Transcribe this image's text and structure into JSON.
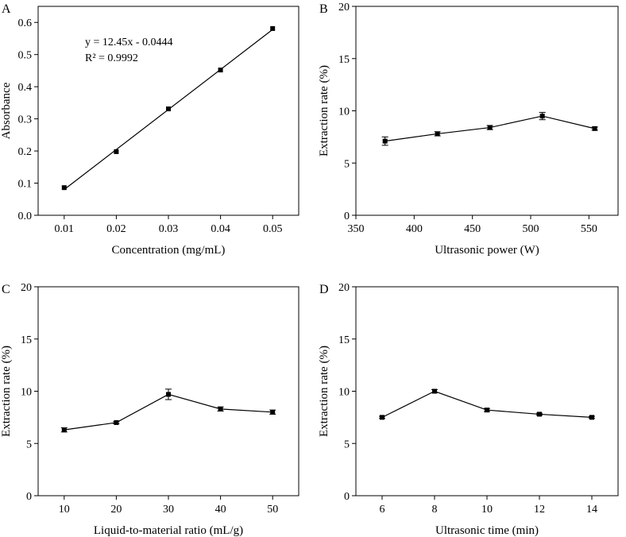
{
  "chart_data": [
    {
      "panel": "A",
      "type": "scatter",
      "xlabel": "Concentration (mg/mL)",
      "ylabel": "Absorbance",
      "xlim": [
        0.005,
        0.055
      ],
      "ylim": [
        0,
        0.65
      ],
      "xticks": [
        "0.01",
        "0.02",
        "0.03",
        "0.04",
        "0.05"
      ],
      "yticks": [
        "0.0",
        "0.1",
        "0.2",
        "0.3",
        "0.4",
        "0.5",
        "0.6"
      ],
      "x": [
        0.01,
        0.02,
        0.03,
        0.04,
        0.05
      ],
      "y": [
        0.086,
        0.198,
        0.331,
        0.452,
        0.581
      ],
      "error": [
        0,
        0,
        0,
        0,
        0
      ],
      "fit_line": {
        "slope": 12.45,
        "intercept": -0.0444
      },
      "annotations": [
        "y = 12.45x - 0.0444",
        "R² = 0.9992"
      ]
    },
    {
      "panel": "B",
      "type": "line",
      "xlabel": "Ultrasonic power (W)",
      "ylabel": "Extraction rate (%)",
      "xlim": [
        350,
        575
      ],
      "ylim": [
        0,
        20
      ],
      "xticks": [
        "350",
        "400",
        "450",
        "500",
        "550"
      ],
      "yticks": [
        "0",
        "5",
        "10",
        "15",
        "20"
      ],
      "x": [
        375,
        420,
        465,
        510,
        555
      ],
      "y": [
        7.1,
        7.8,
        8.4,
        9.5,
        8.3
      ],
      "error": [
        0.4,
        0.2,
        0.2,
        0.35,
        0.15
      ],
      "annotations": []
    },
    {
      "panel": "C",
      "type": "line",
      "xlabel": "Liquid-to-material ratio (mL/g)",
      "ylabel": "Extraction rate (%)",
      "xlim": [
        5,
        55
      ],
      "ylim": [
        0,
        20
      ],
      "xticks": [
        "10",
        "20",
        "30",
        "40",
        "50"
      ],
      "yticks": [
        "0",
        "5",
        "10",
        "15",
        "20"
      ],
      "x": [
        10,
        20,
        30,
        40,
        50
      ],
      "y": [
        6.3,
        7.0,
        9.7,
        8.3,
        8.0
      ],
      "error": [
        0.2,
        0.1,
        0.5,
        0.2,
        0.2
      ],
      "annotations": []
    },
    {
      "panel": "D",
      "type": "line",
      "xlabel": "Ultrasonic time (min)",
      "ylabel": "Extraction rate (%)",
      "xlim": [
        5,
        15
      ],
      "ylim": [
        0,
        20
      ],
      "xticks": [
        "6",
        "8",
        "10",
        "12",
        "14"
      ],
      "yticks": [
        "0",
        "5",
        "10",
        "15",
        "20"
      ],
      "x": [
        6,
        8,
        10,
        12,
        14
      ],
      "y": [
        7.5,
        10.0,
        8.2,
        7.8,
        7.5
      ],
      "error": [
        0.1,
        0.15,
        0.15,
        0.1,
        0.1
      ],
      "annotations": []
    }
  ]
}
